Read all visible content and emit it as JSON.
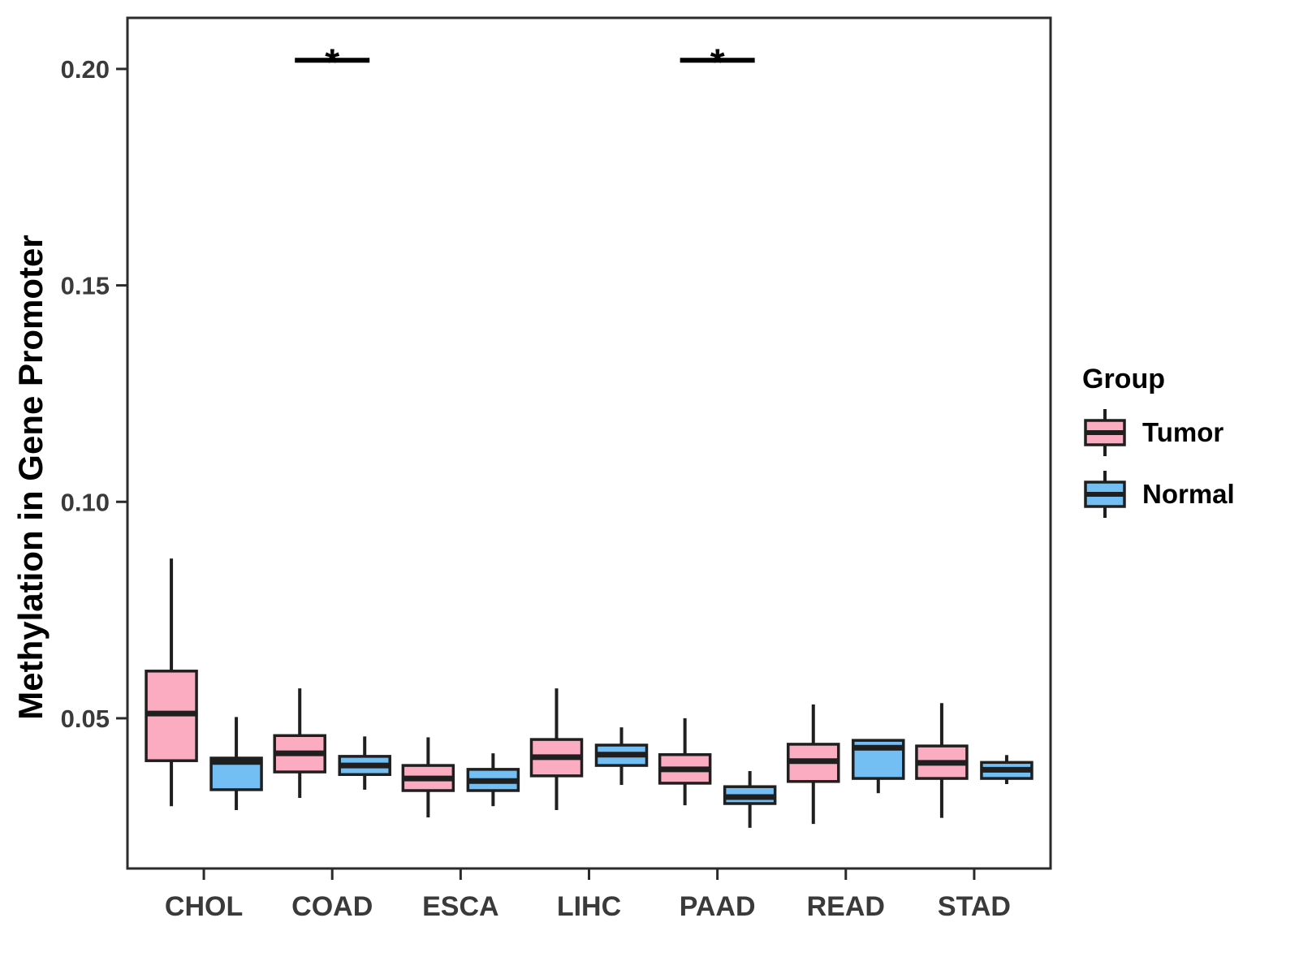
{
  "figure": {
    "background": "#FFFFFF",
    "y_axis": {
      "title": "Methylation in Gene Promoter",
      "ticks": [
        {
          "label": "0.05",
          "value": 0.05
        },
        {
          "label": "0.10",
          "value": 0.1
        },
        {
          "label": "0.15",
          "value": 0.15
        },
        {
          "label": "0.20",
          "value": 0.2
        }
      ],
      "range": [
        0.0153,
        0.2118
      ]
    },
    "x_axis": {
      "title": "",
      "categories": [
        "CHOL",
        "COAD",
        "ESCA",
        "LIHC",
        "PAAD",
        "READ",
        "STAD"
      ]
    },
    "legend": {
      "title": "Group",
      "entries": [
        {
          "label": "Tumor",
          "color": "#FBACC1"
        },
        {
          "label": "Normal",
          "color": "#73BEF3"
        }
      ]
    },
    "colors": {
      "box_border": "#1F1F1F",
      "median": "#1F1F1F",
      "axis_text": "#3A3A3A",
      "axis_line": "#2B2B2B",
      "annotation": "#000000"
    }
  },
  "chart_data": {
    "type": "boxplot",
    "title": "",
    "xlabel": "",
    "ylabel": "Methylation in Gene Promoter",
    "ylim": [
      0.0153,
      0.2118
    ],
    "grid": false,
    "legend_position": "right",
    "categories": [
      "CHOL",
      "COAD",
      "ESCA",
      "LIHC",
      "PAAD",
      "READ",
      "STAD"
    ],
    "series": [
      {
        "name": "Tumor",
        "color": "#FBACC1",
        "boxes": [
          {
            "low": 0.0297,
            "q1": 0.0402,
            "median": 0.0511,
            "q3": 0.0609,
            "high": 0.0869
          },
          {
            "low": 0.0316,
            "q1": 0.0376,
            "median": 0.0419,
            "q3": 0.046,
            "high": 0.0569
          },
          {
            "low": 0.0271,
            "q1": 0.0333,
            "median": 0.0361,
            "q3": 0.0391,
            "high": 0.0456
          },
          {
            "low": 0.0288,
            "q1": 0.0367,
            "median": 0.041,
            "q3": 0.0451,
            "high": 0.0569
          },
          {
            "low": 0.0299,
            "q1": 0.035,
            "median": 0.0382,
            "q3": 0.0416,
            "high": 0.05
          },
          {
            "low": 0.0256,
            "q1": 0.0354,
            "median": 0.0401,
            "q3": 0.044,
            "high": 0.0532
          },
          {
            "low": 0.027,
            "q1": 0.0361,
            "median": 0.0397,
            "q3": 0.0436,
            "high": 0.0535
          }
        ]
      },
      {
        "name": "Normal",
        "color": "#73BEF3",
        "boxes": [
          {
            "low": 0.0288,
            "q1": 0.0335,
            "median": 0.0399,
            "q3": 0.0408,
            "high": 0.0503
          },
          {
            "low": 0.0335,
            "q1": 0.037,
            "median": 0.0391,
            "q3": 0.0412,
            "high": 0.0458
          },
          {
            "low": 0.0297,
            "q1": 0.0333,
            "median": 0.0355,
            "q3": 0.0382,
            "high": 0.0419
          },
          {
            "low": 0.0346,
            "q1": 0.0391,
            "median": 0.0416,
            "q3": 0.0438,
            "high": 0.0479
          },
          {
            "low": 0.0247,
            "q1": 0.0303,
            "median": 0.0318,
            "q3": 0.0342,
            "high": 0.0378
          },
          {
            "low": 0.0327,
            "q1": 0.0361,
            "median": 0.0432,
            "q3": 0.0449,
            "high": 0.0449
          },
          {
            "low": 0.0348,
            "q1": 0.0361,
            "median": 0.0381,
            "q3": 0.0398,
            "high": 0.0415
          }
        ]
      }
    ],
    "annotations": [
      {
        "category": "COAD",
        "label": "*",
        "bar_value": 0.202
      },
      {
        "category": "PAAD",
        "label": "*",
        "bar_value": 0.202
      }
    ]
  }
}
